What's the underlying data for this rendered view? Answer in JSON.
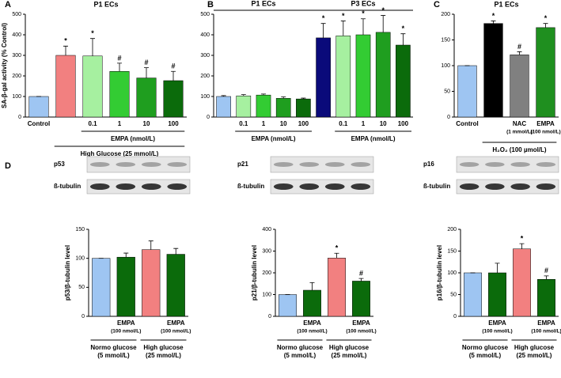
{
  "chart_data": [
    {
      "panel": "A",
      "type": "bar",
      "title": "P1 ECs",
      "ylabel": "SA-β-gal activity (% Control)",
      "categories": [
        "Control",
        null,
        "0.1",
        "1",
        "10",
        "100"
      ],
      "values": [
        100,
        300,
        297,
        222,
        190,
        177
      ],
      "errors": [
        0,
        45,
        85,
        40,
        50,
        45
      ],
      "colors": [
        "#9ec5f2",
        "#f28080",
        "#a6f0a0",
        "#33cc33",
        "#1f9e1f",
        "#0b6b0b"
      ],
      "annotations": [
        null,
        "*",
        "*",
        "#",
        "#",
        "#"
      ],
      "group_labels": [
        "EMPA (nmol/L)",
        "High Glucose (25 mmol/L)"
      ],
      "ylim": [
        0,
        500
      ],
      "yticks": [
        0,
        100,
        200,
        300,
        400,
        500
      ]
    },
    {
      "panel": "B",
      "type": "bar",
      "titles": [
        "P1 ECs",
        "P3 ECs"
      ],
      "categories": [
        null,
        "0.1",
        "1",
        "10",
        "100",
        null,
        "0.1",
        "1",
        "10",
        "100"
      ],
      "values": [
        100,
        103,
        107,
        91,
        88,
        385,
        395,
        400,
        412,
        350
      ],
      "errors": [
        4,
        6,
        5,
        7,
        4,
        70,
        72,
        78,
        82,
        55
      ],
      "colors": [
        "#9ec5f2",
        "#a6f0a0",
        "#33cc33",
        "#1f9e1f",
        "#0b6b0b",
        "#0a0a7a",
        "#a6f0a0",
        "#33cc33",
        "#1f9e1f",
        "#0b6b0b"
      ],
      "annotations": [
        null,
        null,
        null,
        null,
        null,
        "*",
        "*",
        "*",
        "*",
        "*"
      ],
      "group_labels": [
        "EMPA (nmol/L)",
        "EMPA (nmol/L)"
      ],
      "ylim": [
        0,
        500
      ],
      "yticks": [
        0,
        100,
        200,
        300,
        400,
        500
      ]
    },
    {
      "panel": "C",
      "type": "bar",
      "title": "P1 ECs",
      "categories": [
        "Control",
        null,
        "NAC",
        "EMPA"
      ],
      "sub_labels": [
        null,
        null,
        "(1 mmol/L)",
        "(100 nmol/L)"
      ],
      "values": [
        100,
        182,
        121,
        174
      ],
      "errors": [
        0,
        5,
        6,
        8
      ],
      "colors": [
        "#9ec5f2",
        "#000000",
        "#808080",
        "#1f8f1f"
      ],
      "annotations": [
        null,
        "*",
        "#",
        "*"
      ],
      "group_labels": [
        "H₂O₂ (100 µmol/L)"
      ],
      "ylim": [
        0,
        200
      ],
      "yticks": [
        0,
        50,
        100,
        150,
        200
      ]
    },
    {
      "panel": "D",
      "type": "bar",
      "ylabel": "p53/β-tubulin level",
      "blot_labels": [
        "p53",
        "ß-tubulin"
      ],
      "categories": [
        null,
        "EMPA",
        null,
        "EMPA"
      ],
      "sub_labels": [
        null,
        "(100 nmol/L)",
        null,
        "(100 nmol/L)"
      ],
      "values": [
        100,
        102,
        115,
        107
      ],
      "errors": [
        0,
        7,
        15,
        10
      ],
      "colors": [
        "#9ec5f2",
        "#0b6b0b",
        "#f28080",
        "#0b6b0b"
      ],
      "annotations": [
        null,
        null,
        null,
        null
      ],
      "group_labels": [
        "Normo glucose",
        "High glucose"
      ],
      "group_sub_labels": [
        "(5 mmol/L)",
        "(25 mmol/L)"
      ],
      "ylim": [
        0,
        150
      ],
      "yticks": [
        0,
        50,
        100,
        150
      ]
    },
    {
      "type": "bar",
      "ylabel": "p21/β-tubulin level",
      "blot_labels": [
        "p21",
        "ß-tubulin"
      ],
      "categories": [
        null,
        "EMPA",
        null,
        "EMPA"
      ],
      "sub_labels": [
        null,
        "(100 nmol/L)",
        null,
        "(100 nmol/L)"
      ],
      "values": [
        100,
        120,
        268,
        162
      ],
      "errors": [
        0,
        35,
        22,
        12
      ],
      "colors": [
        "#9ec5f2",
        "#0b6b0b",
        "#f28080",
        "#0b6b0b"
      ],
      "annotations": [
        null,
        null,
        "*",
        "#"
      ],
      "group_labels": [
        "Normo glucose",
        "High glucose"
      ],
      "group_sub_labels": [
        "(5 mmol/L)",
        "(25 mmol/L)"
      ],
      "ylim": [
        0,
        400
      ],
      "yticks": [
        0,
        100,
        200,
        300,
        400
      ]
    },
    {
      "type": "bar",
      "ylabel": "p16/β-tubulin level",
      "blot_labels": [
        "p16",
        "ß-tubulin"
      ],
      "categories": [
        null,
        "EMPA",
        null,
        "EMPA"
      ],
      "sub_labels": [
        null,
        "(100 nmol/L)",
        null,
        "(100 nmol/L)"
      ],
      "values": [
        100,
        100,
        155,
        85
      ],
      "errors": [
        0,
        22,
        12,
        8
      ],
      "colors": [
        "#9ec5f2",
        "#0b6b0b",
        "#f28080",
        "#0b6b0b"
      ],
      "annotations": [
        null,
        null,
        "*",
        "#"
      ],
      "group_labels": [
        "Normo glucose",
        "High glucose"
      ],
      "group_sub_labels": [
        "(5 mmol/L)",
        "(25 mmol/L)"
      ],
      "ylim": [
        0,
        200
      ],
      "yticks": [
        0,
        50,
        100,
        150,
        200
      ]
    }
  ]
}
